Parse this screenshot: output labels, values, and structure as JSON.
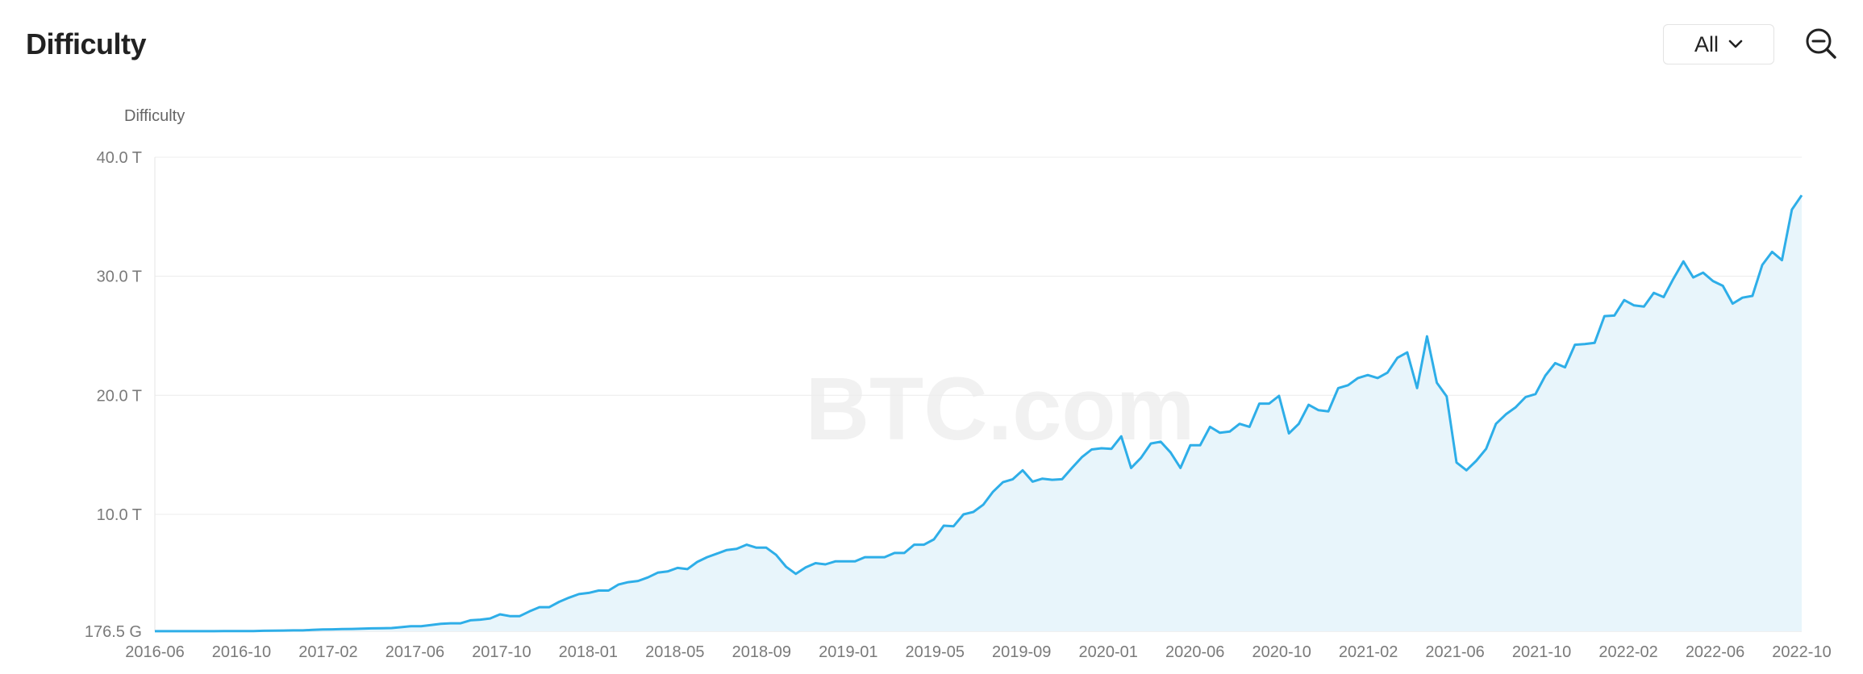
{
  "header": {
    "title": "Difficulty",
    "range_value": "All"
  },
  "icons": {
    "range_chevron": "chevron-down-icon",
    "zoom": "zoom-out-icon"
  },
  "colors": {
    "line": "#2eaee8",
    "area": "#e8f5fb",
    "grid": "#ececec"
  },
  "watermark": "BTC.com",
  "chart_data": {
    "type": "area",
    "title": "",
    "ylabel": "Difficulty",
    "xlabel": "",
    "ylim": [
      0.1765,
      40
    ],
    "y_unit": "T",
    "grid": true,
    "y_ticks": [
      {
        "value": 0.1765,
        "label": "176.5 G"
      },
      {
        "value": 10,
        "label": "10.0 T"
      },
      {
        "value": 20,
        "label": "20.0 T"
      },
      {
        "value": 30,
        "label": "30.0 T"
      },
      {
        "value": 40,
        "label": "40.0 T"
      }
    ],
    "x_ticks": [
      "2016-06",
      "2016-10",
      "2017-02",
      "2017-06",
      "2017-10",
      "2018-01",
      "2018-05",
      "2018-09",
      "2019-01",
      "2019-05",
      "2019-09",
      "2020-01",
      "2020-06",
      "2020-10",
      "2021-02",
      "2021-06",
      "2021-10",
      "2022-02",
      "2022-06",
      "2022-10"
    ],
    "series": [
      {
        "name": "",
        "values": [
          0.18,
          0.18,
          0.18,
          0.18,
          0.18,
          0.18,
          0.18,
          0.19,
          0.2,
          0.2,
          0.2,
          0.22,
          0.23,
          0.24,
          0.25,
          0.25,
          0.3,
          0.33,
          0.34,
          0.36,
          0.37,
          0.39,
          0.42,
          0.43,
          0.45,
          0.52,
          0.6,
          0.6,
          0.7,
          0.8,
          0.85,
          0.85,
          1.1,
          1.15,
          1.25,
          1.6,
          1.45,
          1.45,
          1.85,
          2.2,
          2.2,
          2.65,
          3.0,
          3.3,
          3.4,
          3.6,
          3.6,
          4.1,
          4.3,
          4.4,
          4.7,
          5.1,
          5.2,
          5.5,
          5.4,
          6.0,
          6.4,
          6.7,
          7.0,
          7.1,
          7.45,
          7.2,
          7.2,
          6.6,
          5.6,
          5.0,
          5.55,
          5.9,
          5.8,
          6.05,
          6.05,
          6.05,
          6.4,
          6.4,
          6.4,
          6.75,
          6.75,
          7.45,
          7.45,
          7.9,
          9.05,
          9.0,
          10.0,
          10.2,
          10.8,
          11.9,
          12.7,
          12.95,
          13.7,
          12.75,
          13.0,
          12.9,
          12.95,
          13.9,
          14.8,
          15.45,
          15.55,
          15.5,
          16.55,
          13.9,
          14.75,
          15.95,
          16.1,
          15.2,
          13.9,
          15.8,
          15.8,
          17.35,
          16.85,
          16.95,
          17.6,
          17.35,
          19.3,
          19.3,
          19.95,
          16.8,
          17.6,
          19.2,
          18.75,
          18.65,
          20.6,
          20.85,
          21.45,
          21.7,
          21.45,
          21.9,
          23.15,
          23.6,
          20.6,
          24.95,
          21.05,
          19.9,
          14.35,
          13.7,
          14.5,
          15.5,
          17.6,
          18.4,
          19.0,
          19.85,
          20.1,
          21.65,
          22.7,
          22.35,
          24.25,
          24.3,
          24.4,
          26.65,
          26.7,
          28.0,
          27.55,
          27.45,
          28.6,
          28.25,
          29.8,
          31.25,
          29.9,
          30.3,
          29.6,
          29.2,
          27.7,
          28.2,
          28.35,
          30.95,
          32.05,
          31.35,
          35.6,
          36.8
        ]
      }
    ]
  }
}
